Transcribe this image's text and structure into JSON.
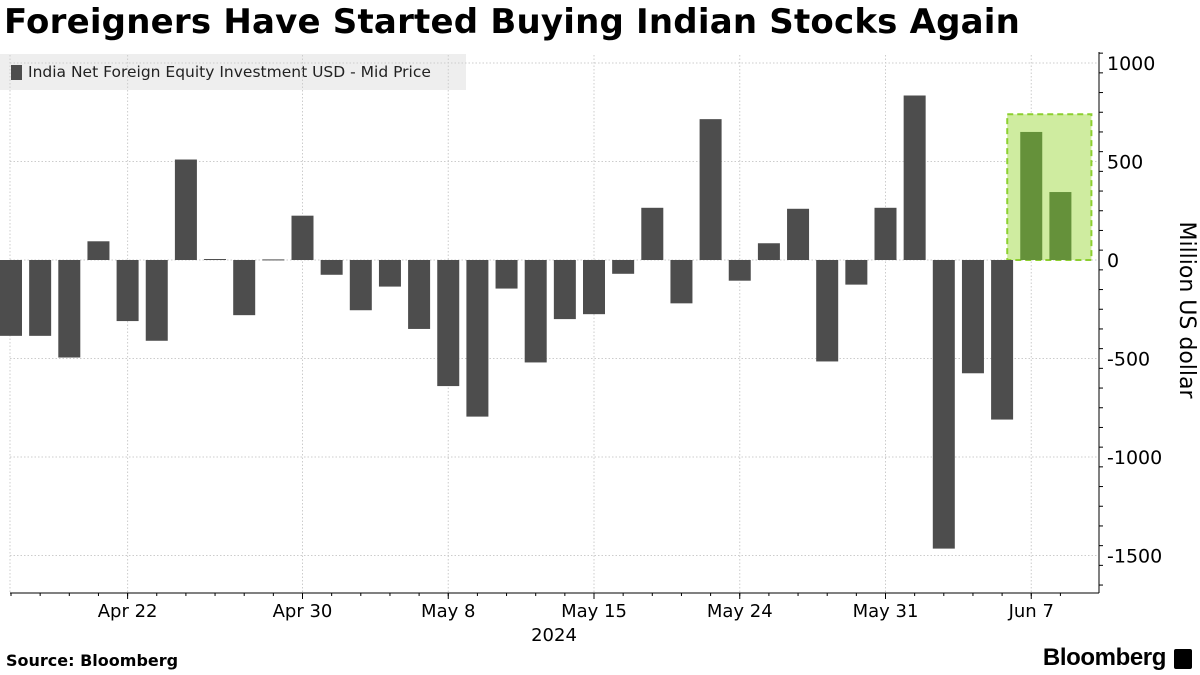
{
  "title": "Foreigners Have Started Buying Indian Stocks Again",
  "source": "Source: Bloomberg",
  "brand": "Bloomberg",
  "brand_icon": "bloomberg-terminal-icon",
  "colors": {
    "bar": "#4d4d4d",
    "highlight_bar": "#65913a",
    "highlight_fill": "#cfeca0",
    "highlight_border": "#8ccf2f",
    "grid": "#cccccc",
    "axis": "#000000"
  },
  "chart_data": {
    "type": "bar",
    "title": "Foreigners Have Started Buying Indian Stocks Again",
    "ylabel": "Million US dollar",
    "xlabel": "2024",
    "ylim": [
      -1700,
      1050
    ],
    "yticks": [
      1000,
      500,
      0,
      -500,
      -1000,
      -1500
    ],
    "ytick_labels": [
      "1000",
      "500",
      "0",
      "-500",
      "-1000",
      "-1500"
    ],
    "xtick_labels": [
      "Apr 22",
      "Apr 30",
      "May 8",
      "May 15",
      "May 24",
      "May 31",
      "Jun 7"
    ],
    "xtick_bar_index": [
      4,
      10,
      15,
      20,
      25,
      30,
      35
    ],
    "legend": [
      "India Net Foreign Equity Investment USD - Mid Price"
    ],
    "grid": true,
    "highlight": {
      "bar_indices": [
        35,
        36
      ],
      "y_from": 0,
      "y_to": 740
    },
    "series": [
      {
        "name": "India Net Foreign Equity Investment USD - Mid Price",
        "values": [
          -385,
          -385,
          -495,
          95,
          -310,
          -410,
          510,
          5,
          -280,
          3,
          225,
          -75,
          -255,
          -135,
          -350,
          -640,
          -795,
          -145,
          -520,
          -300,
          -275,
          -70,
          265,
          -220,
          715,
          -105,
          85,
          260,
          -515,
          -125,
          265,
          835,
          -1465,
          -575,
          -810,
          650,
          345
        ]
      }
    ]
  }
}
